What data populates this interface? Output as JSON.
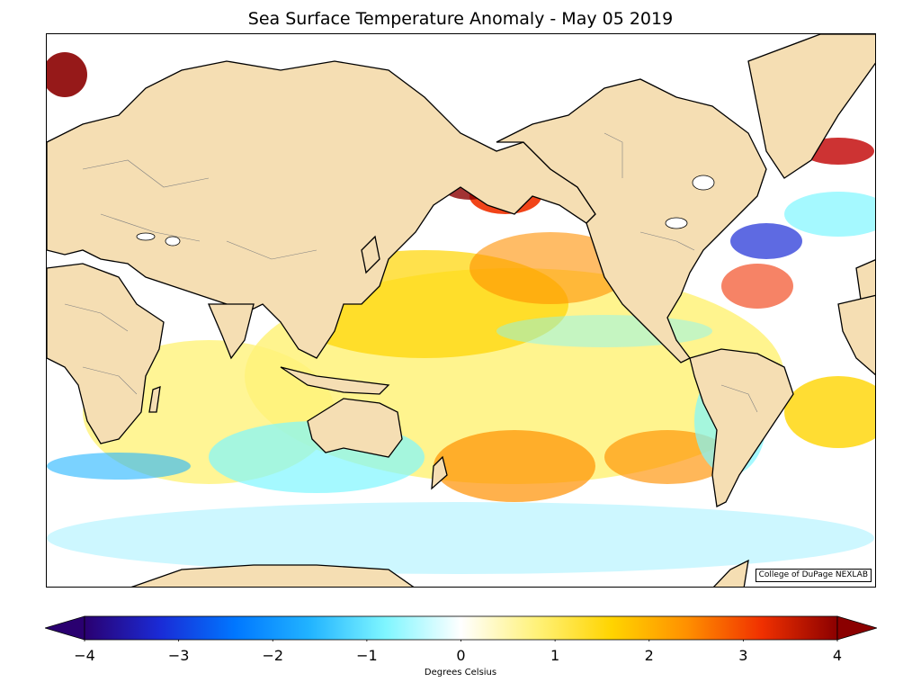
{
  "chart": {
    "title": "Sea Surface Temperature Anomaly - May 05 2019",
    "credit": "College of DuPage NEXLAB",
    "colorbar": {
      "label": "Degrees Celsius",
      "min": -4,
      "max": 4,
      "ticks": [
        "−4",
        "−3",
        "−2",
        "−1",
        "0",
        "1",
        "2",
        "3",
        "4"
      ],
      "tick_values": [
        -4,
        -3,
        -2,
        -1,
        0,
        1,
        2,
        3,
        4
      ],
      "colors": [
        "#2a0070",
        "#1a2bd6",
        "#0077ff",
        "#22b4ff",
        "#7ff6ff",
        "#ffffff",
        "#fff27a",
        "#ffd400",
        "#ff9000",
        "#f03000",
        "#8b0000"
      ]
    },
    "colors": {
      "land": "#f5deb3",
      "coastline": "#000000",
      "borders": "#808080",
      "frame": "#000000"
    }
  }
}
